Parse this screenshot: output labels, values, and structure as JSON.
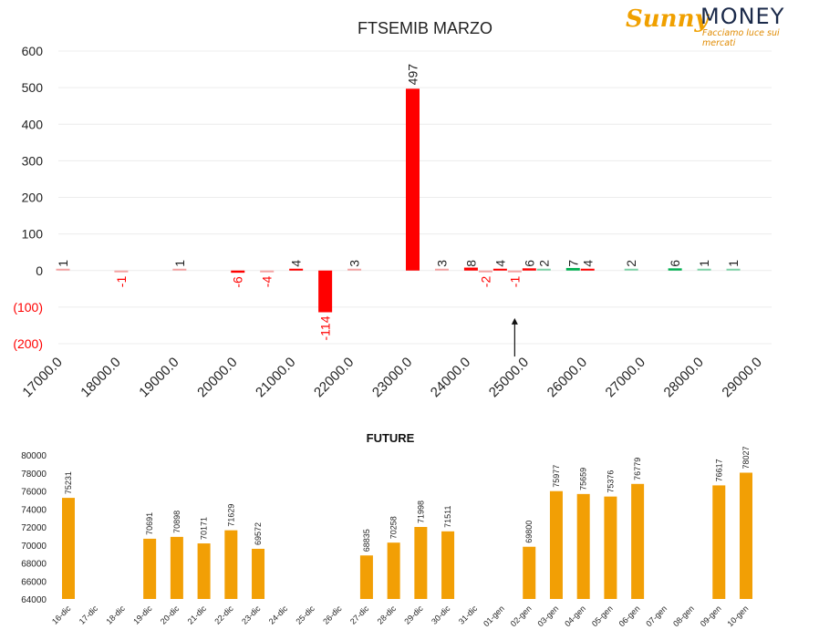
{
  "logo": {
    "sunny": "Sunny",
    "money": "MONEY",
    "tagline": "Facciamo luce sui mercati"
  },
  "colors": {
    "red": "#ff0000",
    "green": "#00b050",
    "light_red": "#f4a3a3",
    "light_green": "#7fd3a8",
    "orange": "#f29f05",
    "neg_label": "#ff0000"
  },
  "chart_data": [
    {
      "type": "bar",
      "title": "FTSEMIB MARZO",
      "xlabel": "",
      "ylabel": "",
      "xlim": [
        17000,
        29000
      ],
      "ylim": [
        -200,
        600
      ],
      "x_ticks": [
        "17000.0",
        "18000.0",
        "19000.0",
        "20000.0",
        "21000.0",
        "22000.0",
        "23000.0",
        "24000.0",
        "25000.0",
        "26000.0",
        "27000.0",
        "28000.0",
        "29000.0"
      ],
      "y_ticks": [
        "600",
        "500",
        "400",
        "300",
        "200",
        "100",
        "0",
        "(100)",
        "(200)"
      ],
      "grid": true,
      "bars": [
        {
          "x": 17000,
          "value": 1,
          "color": "light_red"
        },
        {
          "x": 18000,
          "value": -1,
          "color": "light_red"
        },
        {
          "x": 19000,
          "value": 1,
          "color": "light_red"
        },
        {
          "x": 20000,
          "value": -6,
          "color": "red"
        },
        {
          "x": 20500,
          "value": -4,
          "color": "light_red"
        },
        {
          "x": 21000,
          "value": 4,
          "color": "red"
        },
        {
          "x": 21500,
          "value": -114,
          "color": "red"
        },
        {
          "x": 22000,
          "value": 3,
          "color": "light_red"
        },
        {
          "x": 23000,
          "value": 497,
          "color": "red"
        },
        {
          "x": 23500,
          "value": 3,
          "color": "light_red"
        },
        {
          "x": 24000,
          "value": 8,
          "color": "red"
        },
        {
          "x": 24250,
          "value": -2,
          "color": "light_red"
        },
        {
          "x": 24500,
          "value": 4,
          "color": "red"
        },
        {
          "x": 24750,
          "value": -1,
          "color": "light_red"
        },
        {
          "x": 25000,
          "value": 6,
          "color": "red"
        },
        {
          "x": 25250,
          "value": 2,
          "color": "light_green"
        },
        {
          "x": 25750,
          "value": 7,
          "color": "green"
        },
        {
          "x": 26000,
          "value": 4,
          "color": "red"
        },
        {
          "x": 26750,
          "value": 2,
          "color": "light_green"
        },
        {
          "x": 27500,
          "value": 6,
          "color": "green"
        },
        {
          "x": 28000,
          "value": 1,
          "color": "light_green"
        },
        {
          "x": 28500,
          "value": 1,
          "color": "light_green"
        }
      ],
      "marker": {
        "type": "arrow-up",
        "x": 24750,
        "from": -235,
        "to": -130
      }
    },
    {
      "type": "bar",
      "title": "FUTURE",
      "xlabel": "",
      "ylabel": "",
      "ylim": [
        64000,
        80000
      ],
      "y_ticks": [
        "80000",
        "78000",
        "76000",
        "74000",
        "72000",
        "70000",
        "68000",
        "66000",
        "64000"
      ],
      "grid": false,
      "categories": [
        "16-dic",
        "17-dic",
        "18-dic",
        "19-dic",
        "20-dic",
        "21-dic",
        "22-dic",
        "23-dic",
        "24-dic",
        "25-dic",
        "26-dic",
        "27-dic",
        "28-dic",
        "29-dic",
        "30-dic",
        "31-dic",
        "01-gen",
        "02-gen",
        "03-gen",
        "04-gen",
        "05-gen",
        "06-gen",
        "07-gen",
        "08-gen",
        "09-gen",
        "10-gen"
      ],
      "values": [
        75231,
        null,
        null,
        70691,
        70898,
        70171,
        71629,
        69572,
        null,
        null,
        null,
        68835,
        70258,
        71998,
        71511,
        null,
        null,
        69800,
        75977,
        75659,
        75376,
        76779,
        null,
        null,
        76617,
        78027
      ]
    }
  ]
}
